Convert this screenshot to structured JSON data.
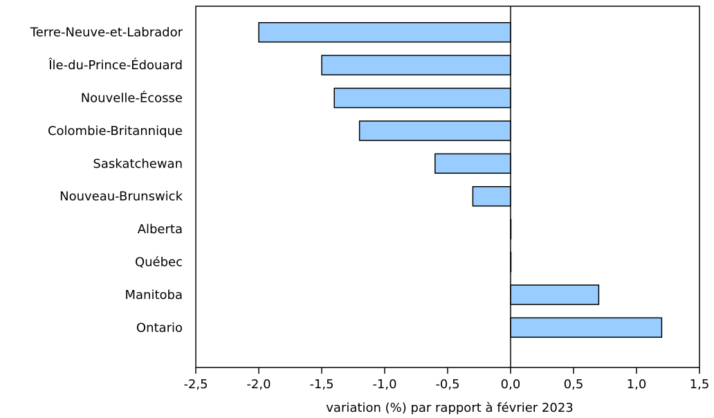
{
  "chart_data": {
    "type": "bar",
    "orientation": "horizontal",
    "categories": [
      "Terre-Neuve-et-Labrador",
      "Île-du-Prince-Édouard",
      "Nouvelle-Écosse",
      "Colombie-Britannique",
      "Saskatchewan",
      "Nouveau-Brunswick",
      "Alberta",
      "Québec",
      "Manitoba",
      "Ontario"
    ],
    "values": [
      -2.0,
      -1.5,
      -1.4,
      -1.2,
      -0.6,
      -0.3,
      0.0,
      0.0,
      0.7,
      1.2
    ],
    "xlabel": "variation (%) par rapport à février 2023",
    "ylabel": "",
    "xlim": [
      -2.5,
      1.5
    ],
    "xticks": [
      "-2,5",
      "-2,0",
      "-1,5",
      "-1,0",
      "-0,5",
      "0,0",
      "0,5",
      "1,0",
      "1,5"
    ],
    "grid": false,
    "colors": {
      "bar_fill": "#99ccff",
      "bar_stroke": "#000000"
    }
  }
}
